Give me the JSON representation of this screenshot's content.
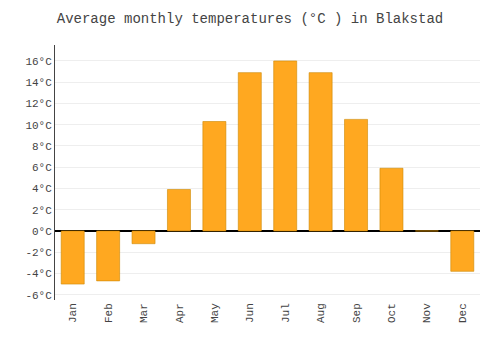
{
  "chart_data": {
    "type": "bar",
    "title": "Average monthly temperatures (°C ) in Blakstad",
    "categories": [
      "Jan",
      "Feb",
      "Mar",
      "Apr",
      "May",
      "Jun",
      "Jul",
      "Aug",
      "Sep",
      "Oct",
      "Nov",
      "Dec"
    ],
    "values": [
      -5.0,
      -4.7,
      -1.2,
      3.9,
      10.3,
      14.9,
      16.0,
      14.9,
      10.5,
      5.9,
      0.0,
      -3.8
    ],
    "color": "#FFA820",
    "ylim": [
      -6.5,
      17.5
    ],
    "yticks": [
      {
        "value": -6,
        "label": "-6°C"
      },
      {
        "value": -4,
        "label": "-4°C"
      },
      {
        "value": -2,
        "label": "-2°C"
      },
      {
        "value": 0,
        "label": "0°C"
      },
      {
        "value": 2,
        "label": "2°C"
      },
      {
        "value": 4,
        "label": "4°C"
      },
      {
        "value": 6,
        "label": "6°C"
      },
      {
        "value": 8,
        "label": "8°C"
      },
      {
        "value": 10,
        "label": "10°C"
      },
      {
        "value": 12,
        "label": "12°C"
      },
      {
        "value": 14,
        "label": "14°C"
      },
      {
        "value": 16,
        "label": "16°C"
      }
    ],
    "grid": true
  }
}
